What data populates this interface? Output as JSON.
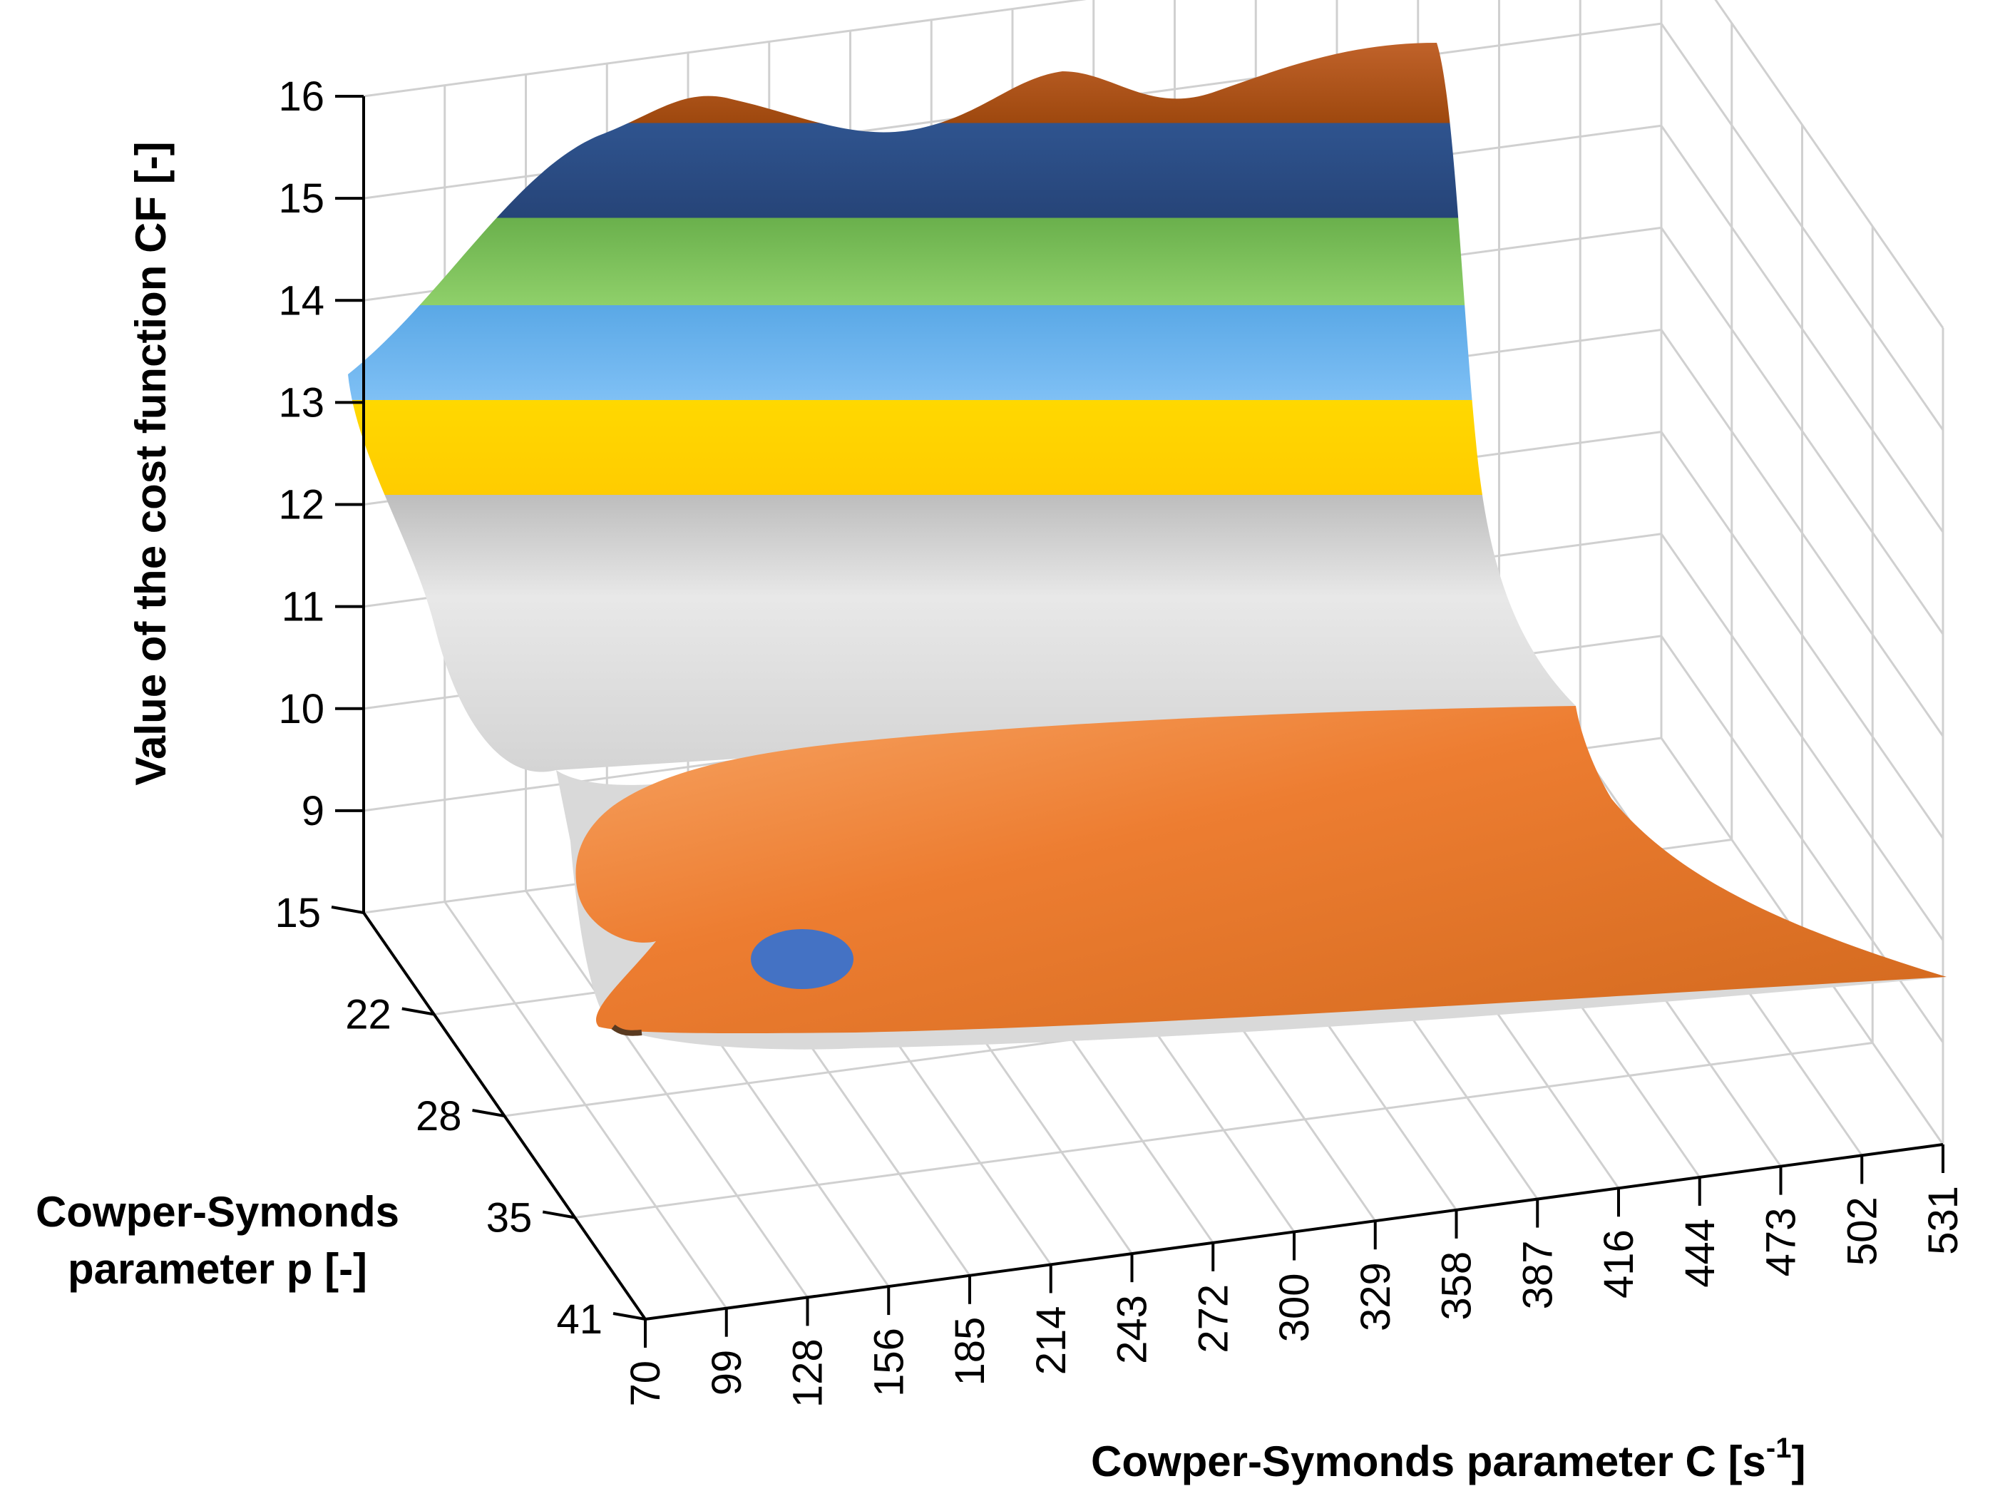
{
  "chart_data": {
    "type": "surface",
    "title": "",
    "xlabel": "Cowper-Symonds parameter C [s",
    "xlabel_sup": "-1",
    "xlabel_close": "]",
    "ylabel_line1": "Cowper-Symonds",
    "ylabel_line2": "parameter p [-]",
    "zlabel": "Value of the cost function CF [-]",
    "x_ticks": [
      "70",
      "99",
      "128",
      "156",
      "185",
      "214",
      "243",
      "272",
      "300",
      "329",
      "358",
      "387",
      "416",
      "444",
      "473",
      "502",
      "531"
    ],
    "y_ticks": [
      "15",
      "22",
      "28",
      "35",
      "41"
    ],
    "z_ticks": [
      "9",
      "10",
      "11",
      "12",
      "13",
      "14",
      "15",
      "16"
    ],
    "zlim": [
      8,
      16
    ],
    "grid": true,
    "color_bands": [
      {
        "range": [
          8,
          8.5
        ],
        "color": "#4472C4"
      },
      {
        "range": [
          8.5,
          9
        ],
        "color": "#ED7D31"
      },
      {
        "range": [
          9,
          10
        ],
        "color": "#ED7D31"
      },
      {
        "range": [
          10,
          11
        ],
        "color": "#C8C8C8"
      },
      {
        "range": [
          11,
          12
        ],
        "color": "#FFD500"
      },
      {
        "range": [
          12,
          13
        ],
        "color": "#5B9BD5"
      },
      {
        "range": [
          13,
          14
        ],
        "color": "#70AD47"
      },
      {
        "range": [
          14,
          15
        ],
        "color": "#264478"
      },
      {
        "range": [
          15,
          16
        ],
        "color": "#9E480E"
      }
    ],
    "minimum_region": {
      "C_approx": 99,
      "p_approx": 22,
      "color": "#4472C4"
    }
  }
}
